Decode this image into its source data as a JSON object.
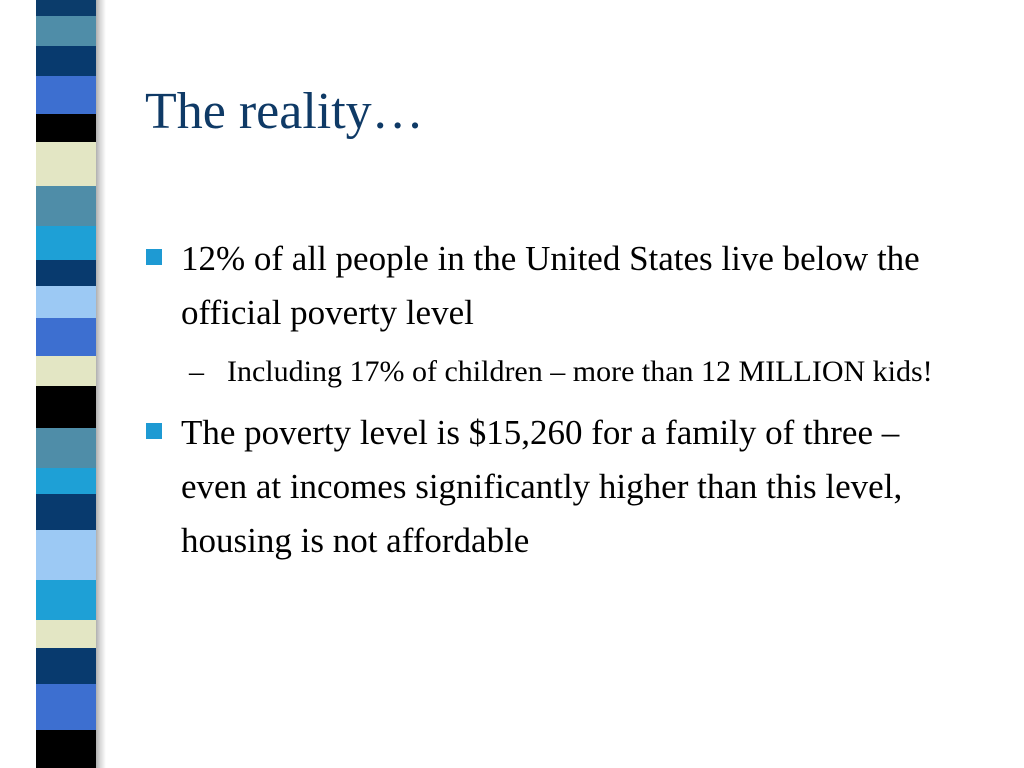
{
  "slide": {
    "title": "The reality…",
    "bullets": [
      {
        "text": "12% of all people in the United States live below the official poverty level",
        "sub_bullets": [
          {
            "marker": "–",
            "text": "Including 17% of children – more than 12 MILLION kids!"
          }
        ]
      },
      {
        "text": "The poverty level is $15,260 for a family of three – even at incomes significantly higher than this level, housing is not affordable"
      }
    ]
  },
  "theme": {
    "title_color": "#0f3a66",
    "bullet_color": "#1e9ad3",
    "stripe_colors": [
      "#0b3c6b",
      "#4f8da8",
      "#083a6e",
      "#3d6fd0",
      "#000000",
      "#e3e6c4",
      "#4f8da8",
      "#1ea0d6",
      "#083a6e",
      "#9cc9f4",
      "#3d6fd0",
      "#e3e6c4",
      "#000000",
      "#4f8da8",
      "#1ea0d6",
      "#083a6e",
      "#9cc9f4",
      "#1ea0d6",
      "#e3e6c4",
      "#083a6e",
      "#3d6fd0",
      "#000000"
    ]
  }
}
